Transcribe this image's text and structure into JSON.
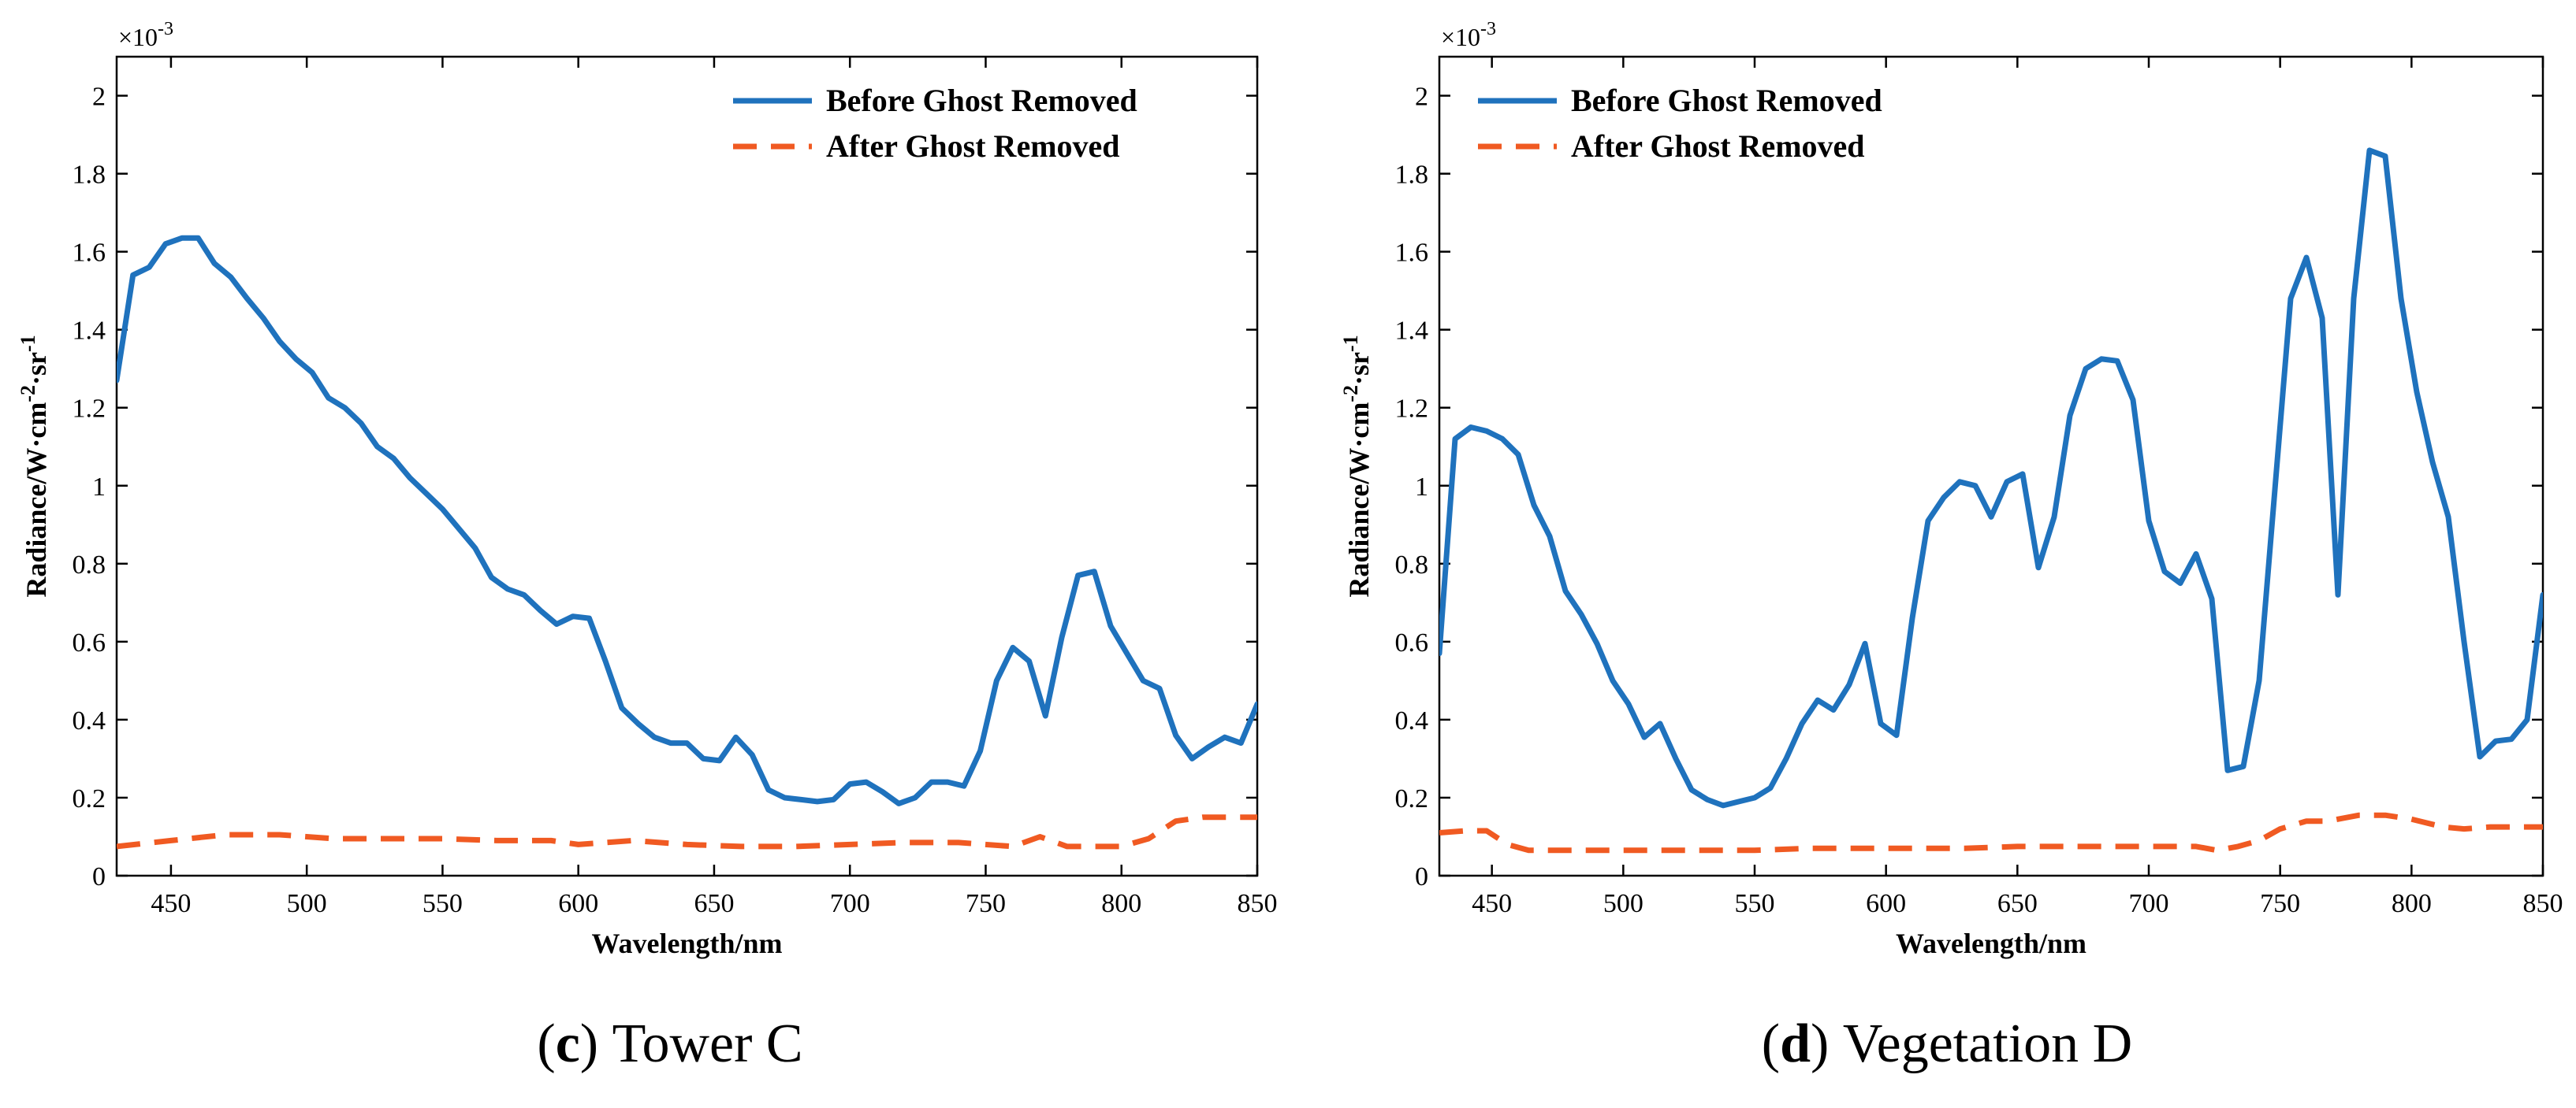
{
  "chart_data": [
    {
      "type": "line",
      "caption_letter": "c",
      "caption_text": " Tower C",
      "xlabel": "Wavelength/nm",
      "ylabel_parts": [
        "Radiance/W·cm",
        "-2",
        "·sr",
        "-1"
      ],
      "exponent_base": "×10",
      "exponent_power": "-3",
      "xlim": [
        430,
        850
      ],
      "ylim": [
        0,
        2.1
      ],
      "x_ticks": [
        450,
        500,
        550,
        600,
        650,
        700,
        750,
        800,
        850
      ],
      "y_ticks": [
        0,
        0.2,
        0.4,
        0.6,
        0.8,
        1,
        1.2,
        1.4,
        1.6,
        1.8,
        2
      ],
      "y_tick_labels": [
        "0",
        "0.2",
        "0.4",
        "0.6",
        "0.8",
        "1",
        "1.2",
        "1.4",
        "1.6",
        "1.8",
        "2"
      ],
      "legend_position": "top-right",
      "series": [
        {
          "name": "Before Ghost Removed",
          "color": "#1f72bd",
          "style": "solid",
          "x": [
            430,
            436,
            442,
            448,
            454,
            460,
            466,
            472,
            478,
            484,
            490,
            496,
            502,
            508,
            514,
            520,
            526,
            532,
            538,
            544,
            550,
            556,
            562,
            568,
            574,
            580,
            586,
            592,
            598,
            604,
            610,
            616,
            622,
            628,
            634,
            640,
            646,
            652,
            658,
            664,
            670,
            676,
            682,
            688,
            694,
            700,
            706,
            712,
            718,
            724,
            730,
            736,
            742,
            748,
            754,
            760,
            766,
            772,
            778,
            784,
            790,
            796,
            802,
            808,
            814,
            820,
            826,
            832,
            838,
            844,
            850
          ],
          "values": [
            1.27,
            1.54,
            1.56,
            1.62,
            1.635,
            1.635,
            1.57,
            1.535,
            1.48,
            1.43,
            1.37,
            1.325,
            1.29,
            1.225,
            1.2,
            1.16,
            1.1,
            1.07,
            1.02,
            0.98,
            0.94,
            0.89,
            0.84,
            0.765,
            0.735,
            0.72,
            0.68,
            0.645,
            0.665,
            0.66,
            0.55,
            0.43,
            0.39,
            0.355,
            0.34,
            0.34,
            0.3,
            0.295,
            0.355,
            0.31,
            0.22,
            0.2,
            0.195,
            0.19,
            0.195,
            0.235,
            0.24,
            0.215,
            0.185,
            0.2,
            0.24,
            0.24,
            0.23,
            0.32,
            0.5,
            0.585,
            0.55,
            0.41,
            0.61,
            0.77,
            0.78,
            0.64,
            0.57,
            0.5,
            0.48,
            0.36,
            0.3,
            0.33,
            0.355,
            0.34,
            0.44
          ]
        },
        {
          "name": "After Ghost Removed",
          "color": "#f05a22",
          "style": "dashed",
          "x": [
            430,
            450,
            470,
            490,
            510,
            530,
            550,
            570,
            590,
            600,
            610,
            620,
            640,
            660,
            680,
            700,
            720,
            740,
            760,
            770,
            780,
            800,
            810,
            820,
            830,
            840,
            850
          ],
          "values": [
            0.075,
            0.09,
            0.105,
            0.105,
            0.095,
            0.095,
            0.095,
            0.09,
            0.09,
            0.08,
            0.085,
            0.09,
            0.08,
            0.075,
            0.075,
            0.08,
            0.085,
            0.085,
            0.075,
            0.1,
            0.075,
            0.075,
            0.095,
            0.14,
            0.15,
            0.15,
            0.15
          ]
        }
      ]
    },
    {
      "type": "line",
      "caption_letter": "d",
      "caption_text": " Vegetation D",
      "xlabel": "Wavelength/nm",
      "ylabel_parts": [
        "Radiance/W·cm",
        "-2",
        "·sr",
        "-1"
      ],
      "exponent_base": "×10",
      "exponent_power": "-3",
      "xlim": [
        430,
        850
      ],
      "ylim": [
        0,
        2.1
      ],
      "x_ticks": [
        450,
        500,
        550,
        600,
        650,
        700,
        750,
        800,
        850
      ],
      "y_ticks": [
        0,
        0.2,
        0.4,
        0.6,
        0.8,
        1,
        1.2,
        1.4,
        1.6,
        1.8,
        2
      ],
      "y_tick_labels": [
        "0",
        "0.2",
        "0.4",
        "0.6",
        "0.8",
        "1",
        "1.2",
        "1.4",
        "1.6",
        "1.8",
        "2"
      ],
      "legend_position": "top-left",
      "series": [
        {
          "name": "Before Ghost Removed",
          "color": "#1f72bd",
          "style": "solid",
          "x": [
            430,
            436,
            442,
            448,
            454,
            460,
            466,
            472,
            478,
            484,
            490,
            496,
            502,
            508,
            514,
            520,
            526,
            532,
            538,
            544,
            550,
            556,
            562,
            568,
            574,
            580,
            586,
            592,
            598,
            604,
            610,
            616,
            622,
            628,
            634,
            640,
            646,
            652,
            658,
            664,
            670,
            676,
            682,
            688,
            694,
            700,
            706,
            712,
            718,
            724,
            730,
            736,
            742,
            748,
            754,
            760,
            766,
            772,
            778,
            784,
            790,
            796,
            802,
            808,
            814,
            820,
            826,
            832,
            838,
            844,
            850
          ],
          "values": [
            0.57,
            1.12,
            1.15,
            1.14,
            1.12,
            1.08,
            0.95,
            0.87,
            0.73,
            0.67,
            0.595,
            0.5,
            0.44,
            0.355,
            0.39,
            0.3,
            0.22,
            0.195,
            0.18,
            0.19,
            0.2,
            0.225,
            0.3,
            0.39,
            0.45,
            0.425,
            0.49,
            0.595,
            0.39,
            0.36,
            0.66,
            0.91,
            0.97,
            1.01,
            1.0,
            0.92,
            1.01,
            1.03,
            0.79,
            0.92,
            1.18,
            1.3,
            1.325,
            1.32,
            1.22,
            0.91,
            0.78,
            0.75,
            0.825,
            0.71,
            0.27,
            0.28,
            0.5,
            0.99,
            1.48,
            1.585,
            1.43,
            0.72,
            1.48,
            1.86,
            1.845,
            1.48,
            1.24,
            1.06,
            0.92,
            0.6,
            0.305,
            0.345,
            0.35,
            0.4,
            0.72
          ]
        },
        {
          "name": "After Ghost Removed",
          "color": "#f05a22",
          "style": "dashed",
          "x": [
            430,
            440,
            448,
            456,
            464,
            472,
            490,
            510,
            530,
            550,
            570,
            590,
            610,
            630,
            650,
            670,
            690,
            710,
            718,
            726,
            734,
            742,
            750,
            760,
            768,
            780,
            790,
            800,
            812,
            820,
            830,
            840,
            850
          ],
          "values": [
            0.11,
            0.115,
            0.115,
            0.08,
            0.065,
            0.065,
            0.065,
            0.065,
            0.065,
            0.065,
            0.07,
            0.07,
            0.07,
            0.07,
            0.075,
            0.075,
            0.075,
            0.075,
            0.075,
            0.065,
            0.075,
            0.09,
            0.12,
            0.14,
            0.14,
            0.155,
            0.155,
            0.145,
            0.125,
            0.12,
            0.125,
            0.125,
            0.125
          ]
        }
      ]
    }
  ]
}
